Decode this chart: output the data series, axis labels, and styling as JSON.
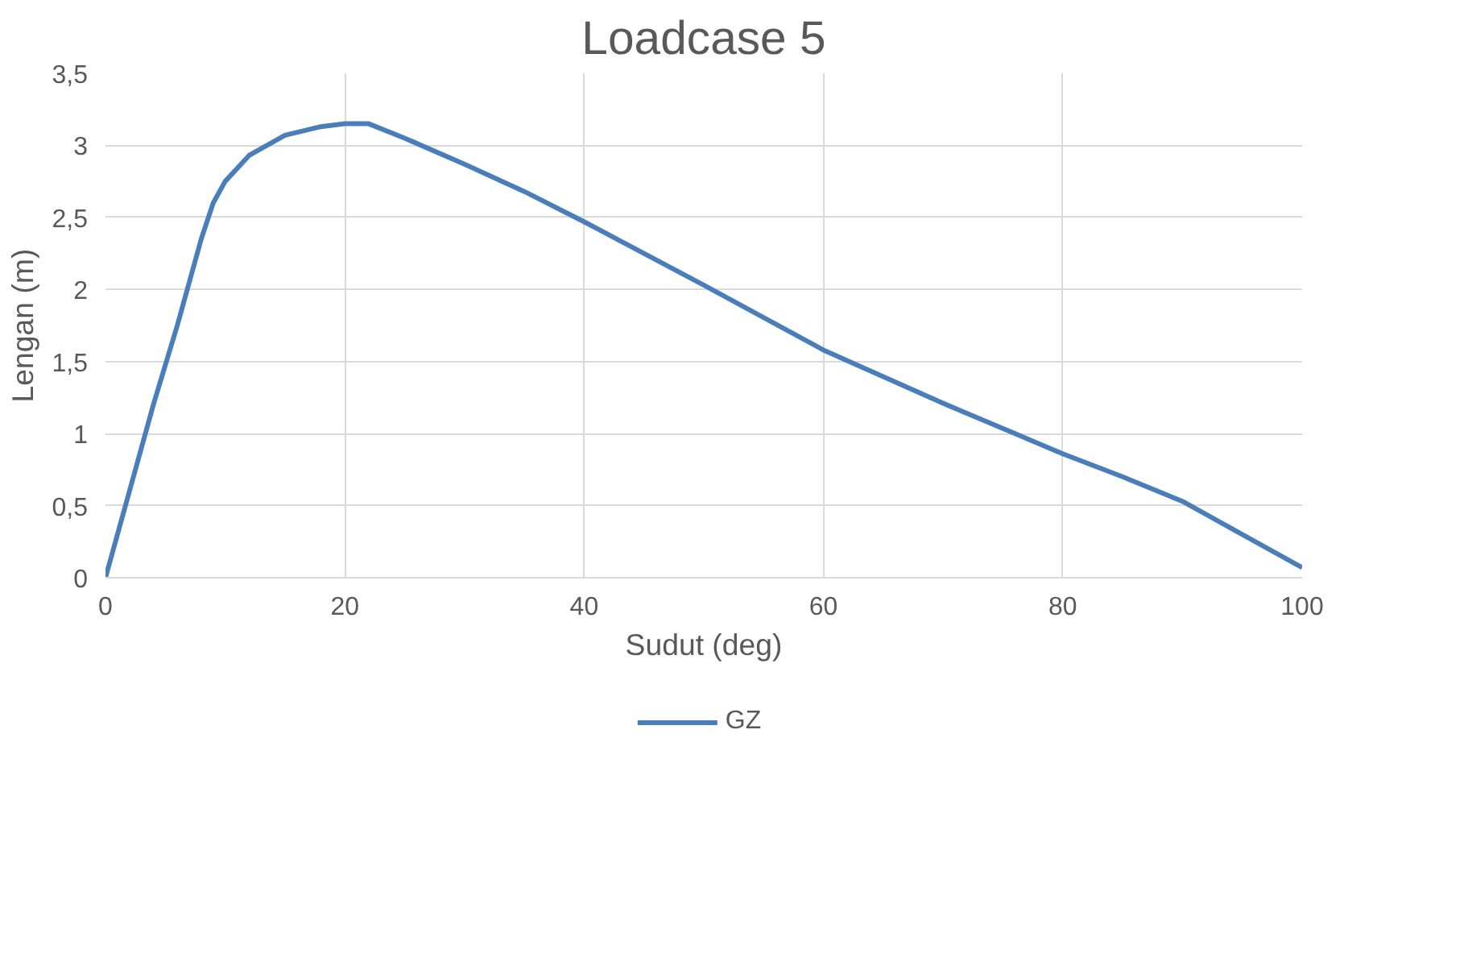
{
  "chart_data": {
    "type": "line",
    "title": "Loadcase 5",
    "xlabel": "Sudut (deg)",
    "ylabel": "Lengan (m)",
    "x": [
      0,
      2,
      4,
      6,
      8,
      9,
      10,
      12,
      15,
      18,
      20,
      22,
      25,
      30,
      35,
      40,
      50,
      60,
      70,
      80,
      85,
      90,
      95,
      100
    ],
    "series": [
      {
        "name": "GZ",
        "color": "#4a7ebb",
        "values": [
          0,
          0.6,
          1.2,
          1.75,
          2.35,
          2.6,
          2.75,
          2.93,
          3.07,
          3.13,
          3.15,
          3.15,
          3.05,
          2.87,
          2.68,
          2.47,
          2.03,
          1.58,
          1.21,
          0.86,
          0.7,
          0.53,
          0.3,
          0.07
        ]
      }
    ],
    "xlim": [
      0,
      100
    ],
    "xticks": [
      0,
      20,
      40,
      60,
      80,
      100
    ],
    "ylim": [
      0,
      3.5
    ],
    "yticks": [
      0,
      {
        "value": 0.5,
        "label": "0,5"
      },
      1,
      {
        "value": 1.5,
        "label": "1,5"
      },
      2,
      {
        "value": 2.5,
        "label": "2,5"
      },
      3,
      {
        "value": 3.5,
        "label": "3,5"
      }
    ],
    "grid": true,
    "legend": "bottom",
    "line_style": "solid",
    "marker": "none"
  }
}
